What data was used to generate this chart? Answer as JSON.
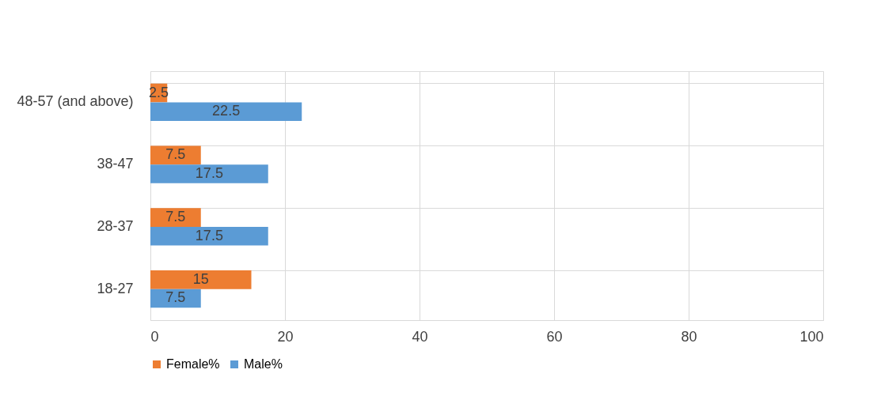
{
  "chart_data": {
    "type": "bar",
    "orientation": "horizontal",
    "categories": [
      "48-57 (and above)",
      "38-47",
      "28-37",
      "18-27"
    ],
    "series": [
      {
        "name": "Female%",
        "color": "#ed7d31",
        "values": [
          2.5,
          7.5,
          7.5,
          15
        ]
      },
      {
        "name": "Male%",
        "color": "#5b9bd5",
        "values": [
          22.5,
          17.5,
          17.5,
          7.5
        ]
      }
    ],
    "xlim": [
      0,
      100
    ],
    "xticks": [
      0,
      20,
      40,
      60,
      80,
      100
    ],
    "grid": true,
    "legend": "bottom",
    "data_labels": true
  }
}
